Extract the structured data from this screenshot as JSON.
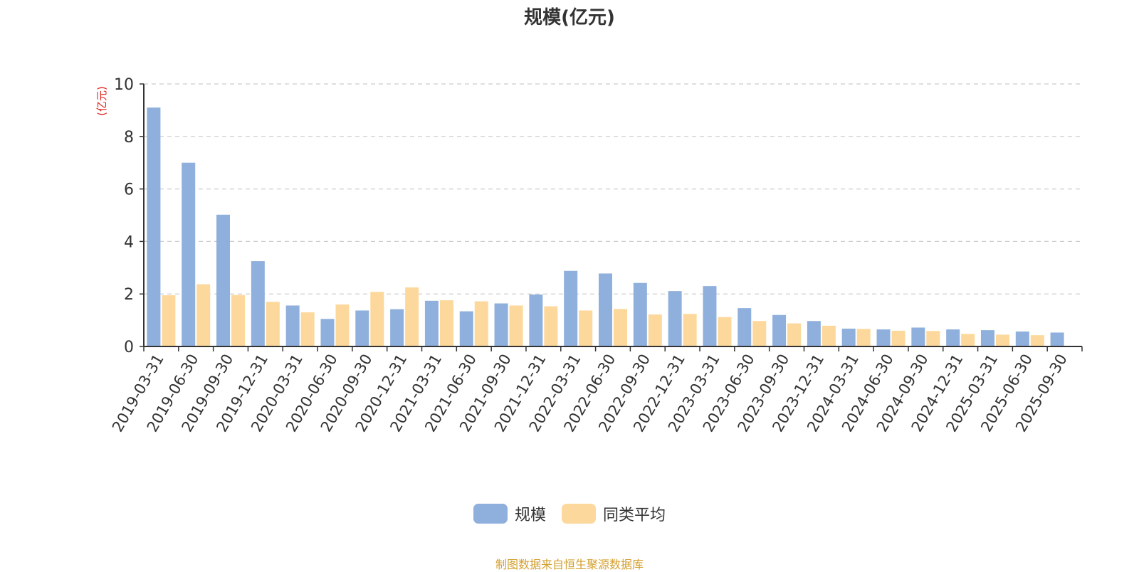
{
  "chart_data": {
    "type": "bar",
    "title": "规模(亿元)",
    "ylabel": "(亿元)",
    "ylim": [
      0,
      10
    ],
    "yticks": [
      0,
      2,
      4,
      6,
      8,
      10
    ],
    "grid": true,
    "legend_position": "bottom-center",
    "categories": [
      "2019-03-31",
      "2019-06-30",
      "2019-09-30",
      "2019-12-31",
      "2020-03-31",
      "2020-06-30",
      "2020-09-30",
      "2020-12-31",
      "2021-03-31",
      "2021-06-30",
      "2021-09-30",
      "2021-12-31",
      "2022-03-31",
      "2022-06-30",
      "2022-09-30",
      "2022-12-31",
      "2023-03-31",
      "2023-06-30",
      "2023-09-30",
      "2023-12-31",
      "2024-03-31",
      "2024-06-30",
      "2024-09-30",
      "2024-12-31",
      "2025-03-31",
      "2025-06-30",
      "2025-09-30"
    ],
    "series": [
      {
        "name": "规模",
        "color": "#8fb0dc",
        "values": [
          9.1,
          7.0,
          5.02,
          3.25,
          1.56,
          1.05,
          1.37,
          1.42,
          1.74,
          1.34,
          1.64,
          1.98,
          2.88,
          2.78,
          2.42,
          2.11,
          2.3,
          1.46,
          1.2,
          0.97,
          0.68,
          0.65,
          0.72,
          0.65,
          0.62,
          0.57,
          0.53
        ]
      },
      {
        "name": "同类平均",
        "color": "#fdd89c",
        "values": [
          1.95,
          2.37,
          1.96,
          1.7,
          1.3,
          1.6,
          2.08,
          2.25,
          1.76,
          1.72,
          1.56,
          1.53,
          1.37,
          1.43,
          1.22,
          1.24,
          1.12,
          0.97,
          0.88,
          0.79,
          0.67,
          0.6,
          0.59,
          0.48,
          0.45,
          0.43,
          null
        ]
      }
    ]
  },
  "source_note": "制图数据来自恒生聚源数据库"
}
